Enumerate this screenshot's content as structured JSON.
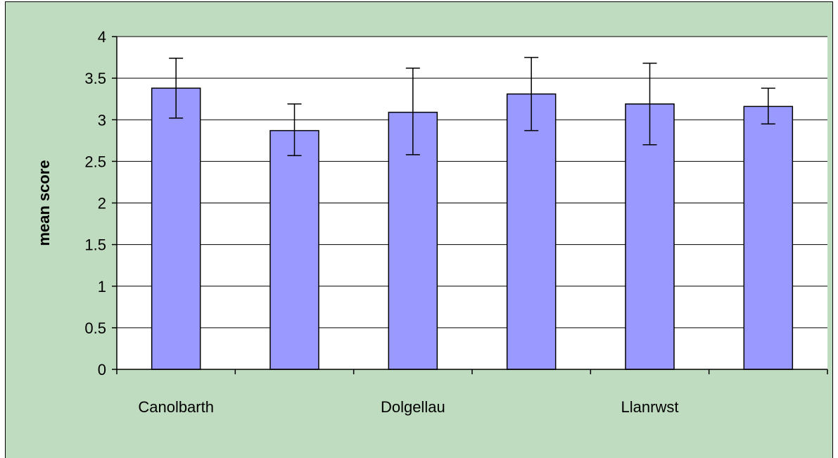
{
  "chart_data": {
    "type": "bar",
    "title": "",
    "xlabel": "",
    "ylabel": "mean score",
    "ylim": [
      0,
      4
    ],
    "yticks": [
      0,
      0.5,
      1,
      1.5,
      2,
      2.5,
      3,
      3.5,
      4
    ],
    "ytick_labels": [
      "0",
      "0.5",
      "1",
      "1.5",
      "2",
      "2.5",
      "3",
      "3.5",
      "4"
    ],
    "category_labels": [
      "Canolbarth",
      "Dolgellau",
      "Llanrwst"
    ],
    "bars": [
      {
        "label": "Canolbarth",
        "value": 3.38,
        "err_low": 3.02,
        "err_high": 3.74
      },
      {
        "label": "",
        "value": 2.87,
        "err_low": 2.57,
        "err_high": 3.19
      },
      {
        "label": "Dolgellau",
        "value": 3.09,
        "err_low": 2.58,
        "err_high": 3.62
      },
      {
        "label": "",
        "value": 3.31,
        "err_low": 2.87,
        "err_high": 3.75
      },
      {
        "label": "Llanrwst",
        "value": 3.19,
        "err_low": 2.7,
        "err_high": 3.68
      },
      {
        "label": "",
        "value": 3.16,
        "err_low": 2.95,
        "err_high": 3.38
      }
    ],
    "grid": true,
    "legend": "none",
    "colors": {
      "background": "#c0dcc0",
      "plot_area": "#ffffff",
      "bar_fill": "#9999ff",
      "bar_stroke": "#000000",
      "grid": "#000000"
    }
  }
}
